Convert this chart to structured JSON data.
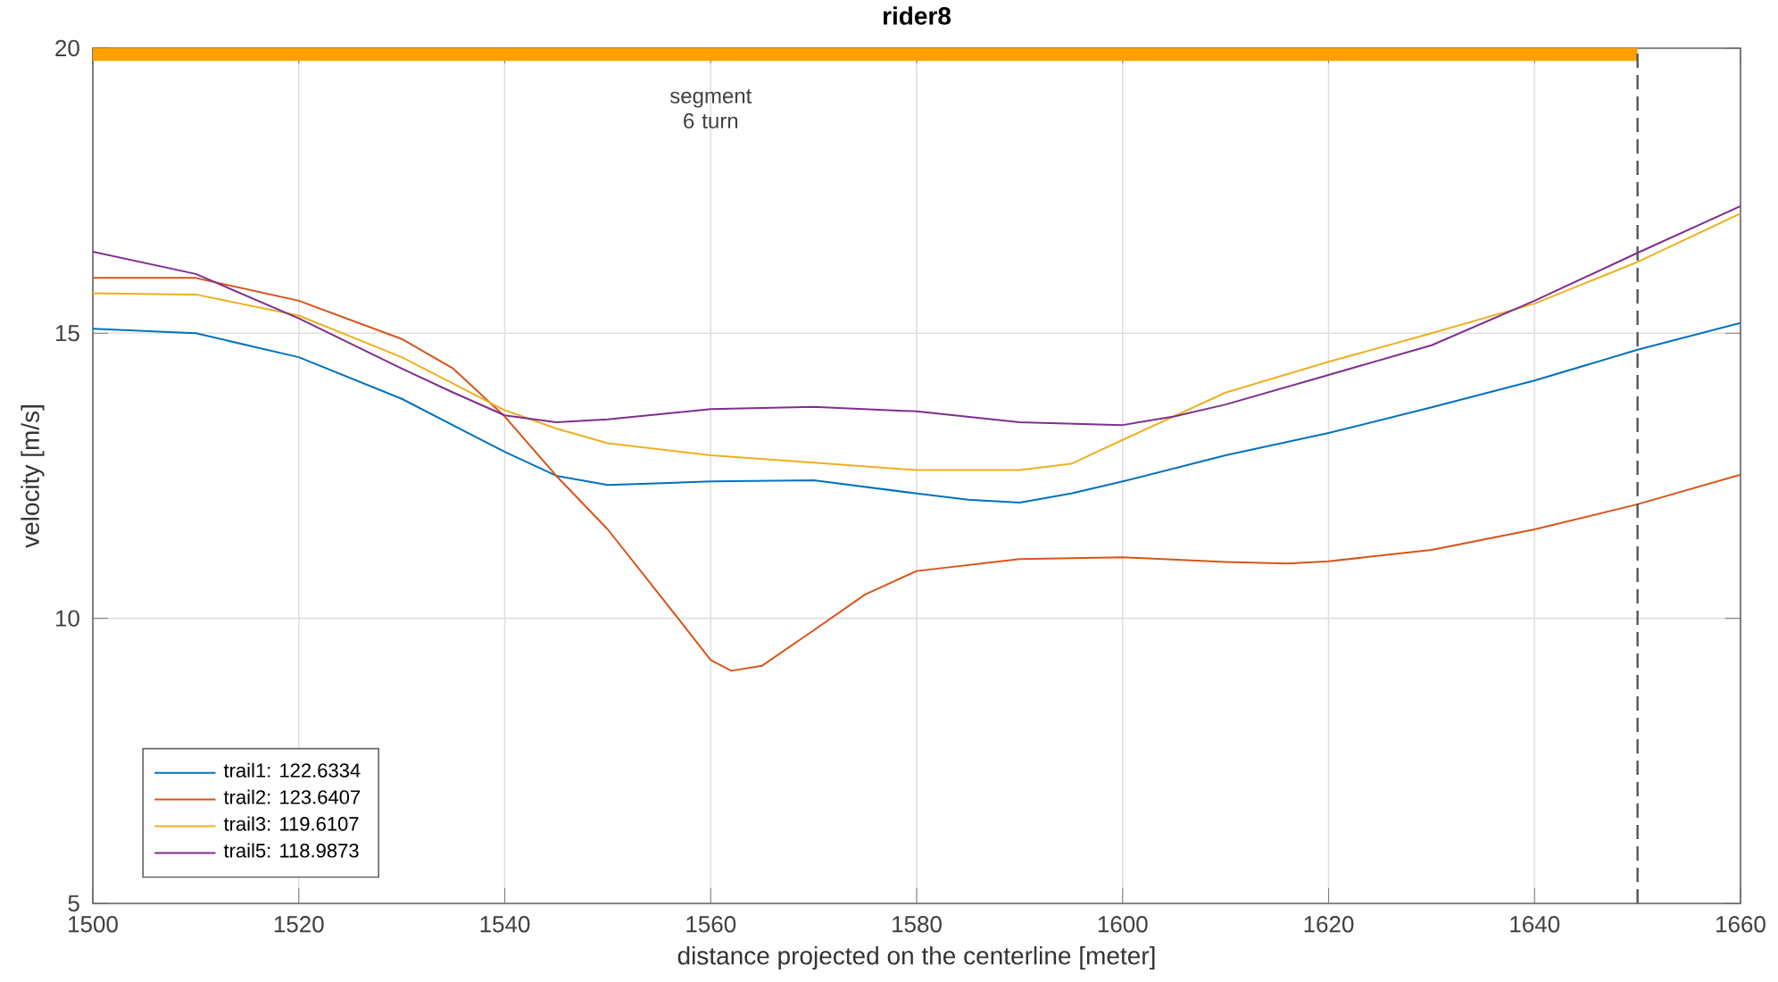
{
  "chart_data": {
    "type": "line",
    "title": "rider8",
    "xlabel": "distance projected on the centerline [meter]",
    "ylabel": "velocity [m/s]",
    "xlim": [
      1500,
      1660
    ],
    "ylim": [
      5,
      20
    ],
    "xticks": [
      1500,
      1520,
      1540,
      1560,
      1580,
      1600,
      1620,
      1640,
      1660
    ],
    "yticks": [
      5,
      10,
      15,
      20
    ],
    "grid": true,
    "legend": "bottom left",
    "line_style": "solid",
    "marker": "none",
    "series": [
      {
        "name": "trail1: 122.6334",
        "color": "#0072bd",
        "x": [
          1500,
          1510,
          1520,
          1530,
          1540,
          1545,
          1550,
          1560,
          1570,
          1580,
          1585,
          1590,
          1595,
          1600,
          1610,
          1620,
          1630,
          1640,
          1650,
          1660
        ],
        "values": [
          15.08,
          15.0,
          14.58,
          13.85,
          12.92,
          12.5,
          12.34,
          12.4,
          12.42,
          12.19,
          12.08,
          12.03,
          12.19,
          12.4,
          12.86,
          13.25,
          13.7,
          14.17,
          14.71,
          15.18
        ]
      },
      {
        "name": "trail2: 123.6407",
        "color": "#d95319",
        "x": [
          1500,
          1510,
          1520,
          1530,
          1535,
          1540,
          1545,
          1550,
          1555,
          1560,
          1562,
          1565,
          1570,
          1575,
          1580,
          1590,
          1600,
          1610,
          1616,
          1620,
          1630,
          1640,
          1650,
          1660
        ],
        "values": [
          15.97,
          15.97,
          15.57,
          14.9,
          14.38,
          13.54,
          12.5,
          11.56,
          10.42,
          9.27,
          9.08,
          9.17,
          9.79,
          10.42,
          10.83,
          11.04,
          11.07,
          10.99,
          10.96,
          11.0,
          11.2,
          11.56,
          12.0,
          12.52
        ]
      },
      {
        "name": "trail3: 119.6107",
        "color": "#edb120",
        "x": [
          1500,
          1510,
          1520,
          1530,
          1540,
          1545,
          1550,
          1560,
          1570,
          1580,
          1590,
          1595,
          1600,
          1610,
          1620,
          1630,
          1640,
          1650,
          1660
        ],
        "values": [
          15.7,
          15.68,
          15.31,
          14.58,
          13.65,
          13.33,
          13.07,
          12.86,
          12.73,
          12.6,
          12.6,
          12.71,
          13.13,
          13.96,
          14.5,
          15.0,
          15.52,
          16.25,
          17.1
        ]
      },
      {
        "name": "trail5: 118.9873",
        "color": "#7e2f8e",
        "x": [
          1500,
          1510,
          1520,
          1530,
          1535,
          1540,
          1545,
          1550,
          1560,
          1570,
          1580,
          1590,
          1600,
          1605,
          1610,
          1620,
          1630,
          1640,
          1650,
          1660
        ],
        "values": [
          16.43,
          16.04,
          15.26,
          14.38,
          13.96,
          13.56,
          13.44,
          13.49,
          13.67,
          13.71,
          13.63,
          13.44,
          13.39,
          13.54,
          13.75,
          14.27,
          14.79,
          15.57,
          16.41,
          17.23
        ]
      },
      {
        "color": "#ffa000",
        "x": [
          1500,
          1650
        ],
        "values": [
          19.9,
          19.9
        ]
      }
    ],
    "annotations": [
      "segment 6 turn"
    ],
    "ref_lines": [
      {
        "axis": "x",
        "value": 1650,
        "color": "#555555",
        "line_style": "dashed"
      }
    ]
  }
}
